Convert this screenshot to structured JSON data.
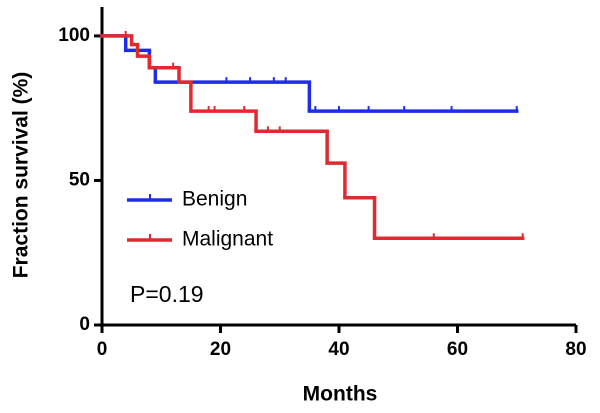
{
  "chart_data": {
    "type": "kaplan-meier",
    "x_label": "Months",
    "y_label": "Fraction survival (%)",
    "annotation": "P=0.19",
    "xlim": [
      0,
      80
    ],
    "xticks": [
      0,
      20,
      40,
      60,
      80
    ],
    "ylim": [
      0,
      110
    ],
    "yticks": [
      0,
      50,
      100
    ],
    "series": [
      {
        "name": "Benign",
        "color": "#1f2de6",
        "x": [
          0,
          4,
          8,
          9,
          35,
          70
        ],
        "values": [
          100,
          95,
          89,
          84,
          74,
          74
        ],
        "censored": [
          21,
          25,
          29,
          31,
          36,
          40,
          45,
          51,
          59,
          70
        ]
      },
      {
        "name": "Malignant",
        "color": "#e02a2f",
        "x": [
          0,
          5,
          6,
          8,
          13,
          15,
          26,
          38,
          41,
          46,
          71
        ],
        "values": [
          100,
          97,
          93,
          89,
          84,
          74,
          67,
          56,
          44,
          30,
          30
        ],
        "censored": [
          4,
          12,
          18,
          19,
          24,
          28,
          30,
          56,
          71
        ]
      }
    ]
  }
}
